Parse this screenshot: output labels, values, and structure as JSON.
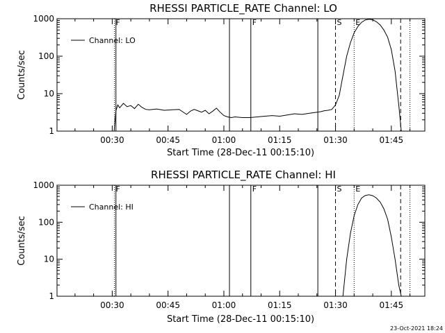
{
  "chart_data": [
    {
      "type": "line",
      "title": "RHESSI PARTICLE_RATE Channel: LO",
      "xlabel": "Start Time (28-Dec-11 00:15:10)",
      "ylabel": "Counts/sec",
      "yscale": "log",
      "ylim": [
        1,
        1000
      ],
      "xlim": [
        "00:15:10",
        "01:54:00"
      ],
      "x_ticks": [
        "00:30",
        "00:45",
        "01:00",
        "01:15",
        "01:30",
        "01:45"
      ],
      "y_ticks": [
        "1",
        "10",
        "100",
        "1000"
      ],
      "legend": {
        "label": "Channel: LO",
        "placement": "top-left"
      },
      "event_markers": [
        {
          "time": "00:30:35",
          "style": "dotted",
          "label": "F"
        },
        {
          "time": "00:31:00",
          "style": "solid",
          "label": ""
        },
        {
          "time": "01:01:30",
          "style": "solid",
          "label": ""
        },
        {
          "time": "01:07:15",
          "style": "solid",
          "label": "F"
        },
        {
          "time": "01:25:15",
          "style": "solid",
          "label": ""
        },
        {
          "time": "01:30:00",
          "style": "dashed",
          "label": "S"
        },
        {
          "time": "01:35:00",
          "style": "dotted",
          "label": "E"
        },
        {
          "time": "01:47:30",
          "style": "dashed",
          "label": ""
        },
        {
          "time": "01:50:00",
          "style": "dotted",
          "label": ""
        }
      ],
      "series": [
        {
          "name": "Channel: LO",
          "x": [
            "00:30:30",
            "00:31:00",
            "00:31:30",
            "00:32:00",
            "00:33:00",
            "00:34:00",
            "00:35:00",
            "00:36:00",
            "00:37:00",
            "00:38:00",
            "00:39:00",
            "00:40:00",
            "00:42:00",
            "00:44:00",
            "00:46:00",
            "00:48:00",
            "00:50:00",
            "00:51:00",
            "00:52:00",
            "00:53:00",
            "00:54:00",
            "00:55:00",
            "00:56:00",
            "00:57:00",
            "00:58:00",
            "00:59:00",
            "01:00:00",
            "01:01:00",
            "01:02:00",
            "01:03:00",
            "01:05:00",
            "01:07:00",
            "01:09:00",
            "01:11:00",
            "01:13:00",
            "01:15:00",
            "01:17:00",
            "01:19:00",
            "01:21:00",
            "01:23:00",
            "01:25:00",
            "01:26:00",
            "01:27:00",
            "01:28:00",
            "01:29:00",
            "01:30:00",
            "01:31:00",
            "01:32:00",
            "01:33:00",
            "01:34:00",
            "01:35:00",
            "01:36:00",
            "01:37:00",
            "01:38:00",
            "01:39:00",
            "01:40:00",
            "01:41:00",
            "01:42:00",
            "01:43:00",
            "01:44:00",
            "01:45:00",
            "01:46:00",
            "01:47:00",
            "01:47:40"
          ],
          "y": [
            1,
            3.5,
            5,
            4.2,
            5.5,
            4.5,
            4.8,
            4,
            5.2,
            4.3,
            3.8,
            3.7,
            3.9,
            3.6,
            3.7,
            3.8,
            2.8,
            3.4,
            3.8,
            3.5,
            3.2,
            3.6,
            2.9,
            3.4,
            4.1,
            3.2,
            2.6,
            2.4,
            2.3,
            2.4,
            2.3,
            2.3,
            2.4,
            2.5,
            2.6,
            2.5,
            2.7,
            2.9,
            2.8,
            3.0,
            3.2,
            3.3,
            3.5,
            3.6,
            3.8,
            5,
            9,
            30,
            100,
            230,
            420,
            620,
            800,
            930,
            970,
            940,
            830,
            680,
            500,
            320,
            150,
            40,
            5,
            1
          ]
        }
      ]
    },
    {
      "type": "line",
      "title": "RHESSI PARTICLE_RATE Channel: HI",
      "xlabel": "Start Time (28-Dec-11 00:15:10)",
      "ylabel": "Counts/sec",
      "yscale": "log",
      "ylim": [
        1,
        1000
      ],
      "xlim": [
        "00:15:10",
        "01:54:00"
      ],
      "x_ticks": [
        "00:30",
        "00:45",
        "01:00",
        "01:15",
        "01:30",
        "01:45"
      ],
      "y_ticks": [
        "1",
        "10",
        "100",
        "1000"
      ],
      "legend": {
        "label": "Channel: HI",
        "placement": "top-left"
      },
      "event_markers": [
        {
          "time": "00:30:35",
          "style": "dotted",
          "label": "F"
        },
        {
          "time": "00:31:00",
          "style": "solid",
          "label": ""
        },
        {
          "time": "01:01:30",
          "style": "solid",
          "label": ""
        },
        {
          "time": "01:07:15",
          "style": "solid",
          "label": "F"
        },
        {
          "time": "01:25:15",
          "style": "solid",
          "label": ""
        },
        {
          "time": "01:30:00",
          "style": "dashed",
          "label": "S"
        },
        {
          "time": "01:35:00",
          "style": "dotted",
          "label": "E"
        },
        {
          "time": "01:47:30",
          "style": "dashed",
          "label": ""
        },
        {
          "time": "01:50:00",
          "style": "dotted",
          "label": ""
        }
      ],
      "series": [
        {
          "name": "Channel: HI",
          "x": [
            "01:32:00",
            "01:33:00",
            "01:34:00",
            "01:35:00",
            "01:36:00",
            "01:37:00",
            "01:38:00",
            "01:39:00",
            "01:40:00",
            "01:41:00",
            "01:42:00",
            "01:43:00",
            "01:44:00",
            "01:45:00",
            "01:46:00",
            "01:47:00",
            "01:47:40"
          ],
          "y": [
            1,
            10,
            50,
            150,
            300,
            450,
            530,
            550,
            520,
            450,
            350,
            230,
            120,
            40,
            10,
            2,
            1
          ]
        }
      ]
    }
  ],
  "footer": {
    "date": "23-Oct-2021 18:24"
  },
  "colors": {
    "background": "#ffffff",
    "foreground": "#000000"
  }
}
